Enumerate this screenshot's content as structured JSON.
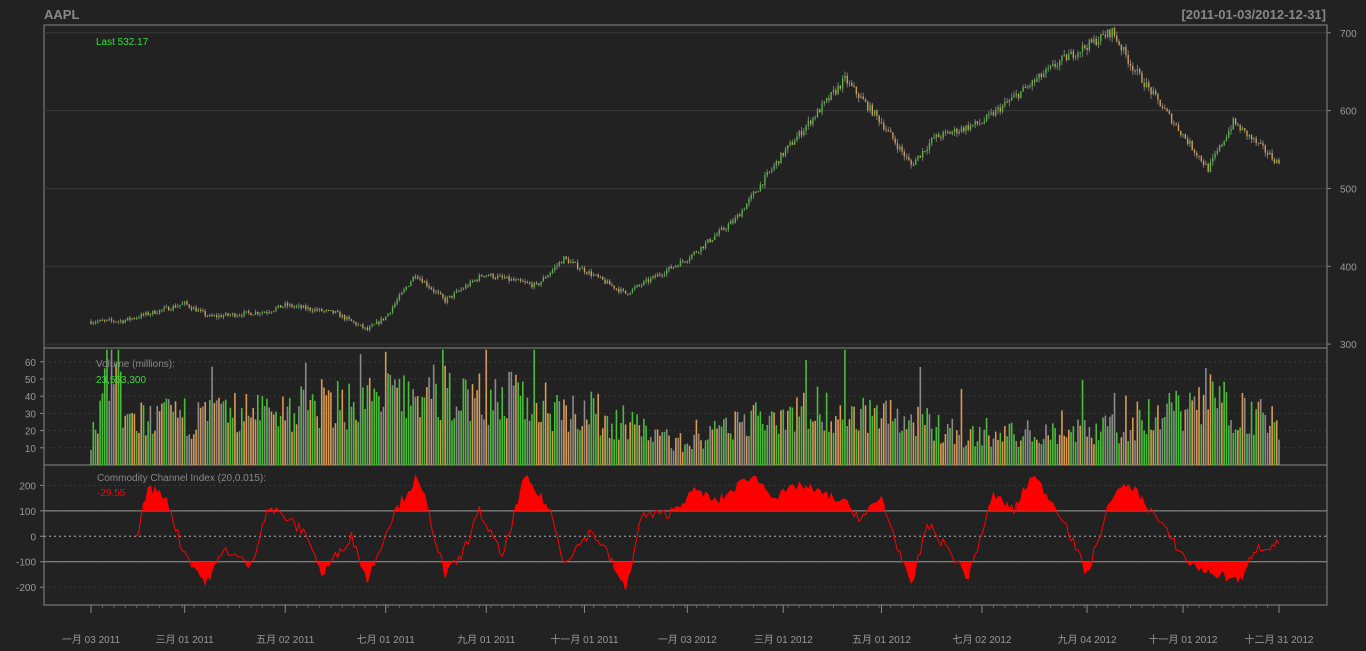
{
  "chart_data": [
    {
      "type": "candlestick",
      "title": "AAPL",
      "date_range_label": "[2011-01-03/2012-12-31]",
      "annotation": "Last 532.17",
      "ylim": [
        295,
        710
      ],
      "yticks": [
        "300",
        "400",
        "500",
        "600",
        "700"
      ],
      "grid": true,
      "anchor_prices": {
        "dates": [
          "2011-01-03",
          "2011-01-21",
          "2011-03-01",
          "2011-03-16",
          "2011-04-20",
          "2011-05-02",
          "2011-06-01",
          "2011-06-21",
          "2011-07-01",
          "2011-07-20",
          "2011-08-08",
          "2011-08-31",
          "2011-10-03",
          "2011-10-19",
          "2011-11-25",
          "2012-01-03",
          "2012-02-01",
          "2012-03-01",
          "2012-04-09",
          "2012-05-01",
          "2012-05-18",
          "2012-06-01",
          "2012-07-02",
          "2012-08-20",
          "2012-09-19",
          "2012-10-01",
          "2012-11-16",
          "2012-12-03",
          "2012-12-31"
        ],
        "values": [
          329,
          330,
          352,
          335,
          342,
          350,
          340,
          318,
          335,
          390,
          356,
          390,
          375,
          410,
          365,
          410,
          460,
          545,
          640,
          585,
          530,
          565,
          585,
          665,
          702,
          660,
          525,
          585,
          532
        ]
      }
    },
    {
      "type": "bar",
      "title": "Volume (millions):",
      "annotation": "23,553,300",
      "yticks": [
        "10",
        "20",
        "30",
        "40",
        "50",
        "60"
      ],
      "ylim": [
        0,
        68
      ],
      "anchor_volumes": {
        "dates": [
          "2011-01-03",
          "2011-01-18",
          "2011-01-21",
          "2011-03-16",
          "2011-08-08",
          "2011-10-19",
          "2012-01-03",
          "2012-03-01",
          "2012-04-17",
          "2012-07-02",
          "2012-09-21",
          "2012-10-25",
          "2012-11-16",
          "2012-12-31"
        ],
        "values": [
          15,
          66,
          26,
          28,
          42,
          35,
          12,
          32,
          32,
          16,
          22,
          32,
          40,
          23
        ]
      }
    },
    {
      "type": "area",
      "title": "Commodity Channel Index (20,0.015):",
      "annotation": "-29.55",
      "yticks": [
        "-200",
        "-100",
        "0",
        "100",
        "200"
      ],
      "ylim": [
        -270,
        280
      ],
      "bands": [
        -100,
        0,
        100
      ],
      "anchor_cci": {
        "dates": [
          "2011-01-31",
          "2011-02-07",
          "2011-02-17",
          "2011-02-28",
          "2011-03-14",
          "2011-03-16",
          "2011-03-25",
          "2011-04-11",
          "2011-04-20",
          "2011-04-28",
          "2011-05-16",
          "2011-05-24",
          "2011-06-10",
          "2011-06-21",
          "2011-07-06",
          "2011-07-20",
          "2011-07-26",
          "2011-08-08",
          "2011-08-17",
          "2011-08-29",
          "2011-09-12",
          "2011-09-26",
          "2011-10-11",
          "2011-10-19",
          "2011-11-04",
          "2011-11-14",
          "2011-11-25",
          "2011-12-06",
          "2011-12-22",
          "2012-01-09",
          "2012-01-20",
          "2012-02-10",
          "2012-02-27",
          "2012-03-12",
          "2012-04-09",
          "2012-04-18",
          "2012-05-01",
          "2012-05-18",
          "2012-05-29",
          "2012-06-11",
          "2012-06-22",
          "2012-07-09",
          "2012-07-20",
          "2012-08-01",
          "2012-08-20",
          "2012-09-04",
          "2012-09-19",
          "2012-10-01",
          "2012-10-15",
          "2012-11-05",
          "2012-11-16",
          "2012-11-30",
          "2012-12-07",
          "2012-12-14",
          "2012-12-31"
        ],
        "values": [
          0,
          190,
          150,
          -50,
          -180,
          -150,
          -50,
          -120,
          110,
          90,
          0,
          -150,
          0,
          -170,
          80,
          220,
          150,
          -150,
          -80,
          100,
          -80,
          230,
          100,
          -100,
          20,
          -50,
          -210,
          80,
          90,
          180,
          130,
          240,
          150,
          200,
          130,
          70,
          150,
          -200,
          50,
          -50,
          -160,
          160,
          100,
          240,
          80,
          -150,
          160,
          200,
          90,
          -100,
          -140,
          -160,
          -170,
          -50,
          -30
        ]
      }
    }
  ],
  "x_axis": {
    "labels": [
      "一月 03 2011",
      "三月 01 2011",
      "五月 02 2011",
      "七月 01 2011",
      "九月 01 2011",
      "十一月 01 2011",
      "一月 03 2012",
      "三月 01 2012",
      "五月 01 2012",
      "七月 02 2012",
      "九月 04 2012",
      "十一月 01 2012",
      "十二月 31 2012"
    ],
    "dates": [
      "2011-01-03",
      "2011-03-01",
      "2011-05-02",
      "2011-07-01",
      "2011-09-01",
      "2011-11-01",
      "2012-01-03",
      "2012-03-01",
      "2012-05-01",
      "2012-07-02",
      "2012-09-04",
      "2012-11-01",
      "2012-12-31"
    ]
  },
  "colors": {
    "background": "#222222",
    "frame": "#888888",
    "grid": "#3a3a3a",
    "text": "#999999",
    "up": "#4cbb3c",
    "down": "#d99a55",
    "wick": "#777777",
    "last_label": "#33dd33",
    "cci": "#ff0000"
  }
}
